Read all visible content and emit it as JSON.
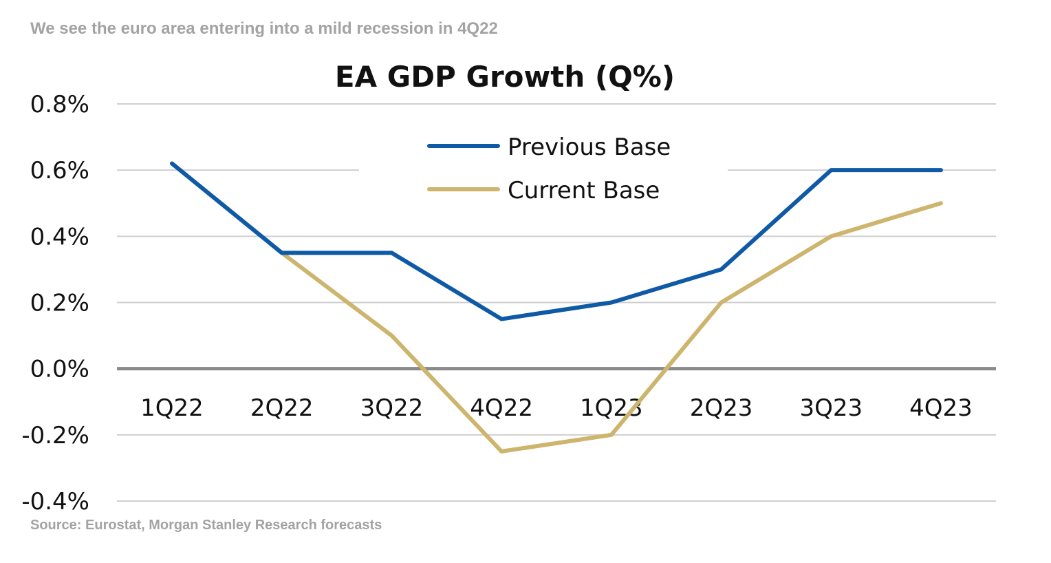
{
  "header": {
    "subtitle": "We see the euro area entering into a mild recession in 4Q22"
  },
  "footer": {
    "source": "Source: Eurostat, Morgan Stanley Research forecasts"
  },
  "chart_data": {
    "type": "line",
    "title": "EA GDP Growth (Q%)",
    "categories": [
      "1Q22",
      "2Q22",
      "3Q22",
      "4Q22",
      "1Q23",
      "2Q23",
      "3Q23",
      "4Q23"
    ],
    "series": [
      {
        "name": "Previous Base",
        "color": "#0f5aa6",
        "values": [
          0.62,
          0.35,
          0.35,
          0.15,
          0.2,
          0.3,
          0.6,
          0.6
        ]
      },
      {
        "name": "Current Base",
        "color": "#cdb56e",
        "values": [
          0.62,
          0.35,
          0.1,
          -0.25,
          -0.2,
          0.2,
          0.4,
          0.5
        ]
      }
    ],
    "yticks": [
      0.8,
      0.6,
      0.4,
      0.2,
      0.0,
      -0.2,
      -0.4
    ],
    "ytick_labels": [
      "0.8%",
      "0.6%",
      "0.4%",
      "0.2%",
      "0.0%",
      "-0.2%",
      "-0.4%"
    ],
    "ylim": [
      -0.4,
      0.8
    ],
    "grid": true,
    "legend_position": "top-center",
    "xlabel": "",
    "ylabel": ""
  }
}
